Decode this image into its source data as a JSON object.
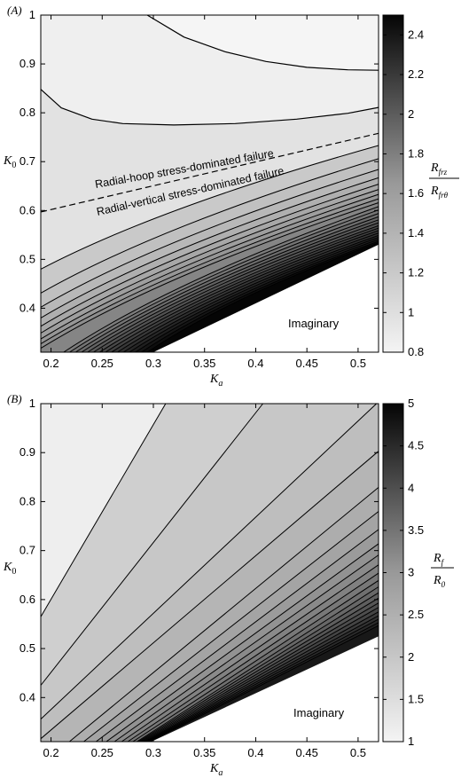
{
  "chart_data": [
    {
      "type": "contour",
      "panel_label": "(A)",
      "xlabel": "K_a",
      "ylabel": "K_0",
      "xlim": [
        0.19,
        0.52
      ],
      "ylim": [
        0.31,
        1.0
      ],
      "xticks": [
        "0.2",
        "0.25",
        "0.3",
        "0.35",
        "0.4",
        "0.45",
        "0.5"
      ],
      "xtick_values": [
        0.2,
        0.25,
        0.3,
        0.35,
        0.4,
        0.45,
        0.5
      ],
      "yticks": [
        "0.4",
        "0.5",
        "0.6",
        "0.7",
        "0.8",
        "0.9",
        "1"
      ],
      "ytick_values": [
        0.4,
        0.5,
        0.6,
        0.7,
        0.8,
        0.9,
        1.0
      ],
      "colorbar": {
        "label_num": "R_{frz}",
        "label_den": "R_{frθ}",
        "range": [
          0.8,
          2.5
        ],
        "ticks": [
          "0.8",
          "1",
          "1.2",
          "1.4",
          "1.6",
          "1.8",
          "2",
          "2.2",
          "2.4"
        ],
        "tick_values": [
          0.8,
          1.0,
          1.2,
          1.4,
          1.6,
          1.8,
          2.0,
          2.2,
          2.4
        ]
      },
      "imaginary_boundary": [
        [
          0.3,
          0.31
        ],
        [
          0.52,
          0.53
        ]
      ],
      "region_label": "Imaginary",
      "annotations": [
        "Radial-hoop stress-dominated failure",
        "Radial-vertical stress-dominated failure"
      ],
      "separator_line": [
        [
          0.19,
          0.597
        ],
        [
          0.52,
          0.758
        ]
      ],
      "upper_contours": [
        [
          [
            0.294,
            1.0
          ],
          [
            0.33,
            0.955
          ],
          [
            0.37,
            0.925
          ],
          [
            0.41,
            0.905
          ],
          [
            0.45,
            0.893
          ],
          [
            0.49,
            0.888
          ],
          [
            0.52,
            0.887
          ]
        ],
        [
          [
            0.19,
            0.848
          ],
          [
            0.21,
            0.81
          ],
          [
            0.24,
            0.787
          ],
          [
            0.27,
            0.778
          ],
          [
            0.32,
            0.775
          ],
          [
            0.38,
            0.778
          ],
          [
            0.44,
            0.787
          ],
          [
            0.49,
            0.799
          ],
          [
            0.52,
            0.811
          ]
        ]
      ],
      "fan_contours": {
        "y_left_start": [
          0.48,
          0.431,
          0.402,
          0.38,
          0.363,
          0.349,
          0.337,
          0.327,
          0.318
        ],
        "y_right_end": [
          0.733,
          0.706,
          0.684,
          0.667,
          0.654,
          0.643,
          0.633,
          0.624,
          0.616,
          0.608,
          0.601,
          0.594,
          0.587,
          0.581,
          0.575,
          0.569,
          0.564,
          0.559,
          0.554,
          0.549,
          0.545,
          0.541,
          0.537,
          0.534
        ],
        "levels_total": 24
      }
    },
    {
      "type": "contour",
      "panel_label": "(B)",
      "xlabel": "K_a",
      "ylabel": "K_0",
      "xlim": [
        0.19,
        0.52
      ],
      "ylim": [
        0.31,
        1.0
      ],
      "xticks": [
        "0.2",
        "0.25",
        "0.3",
        "0.35",
        "0.4",
        "0.45",
        "0.5"
      ],
      "xtick_values": [
        0.2,
        0.25,
        0.3,
        0.35,
        0.4,
        0.45,
        0.5
      ],
      "yticks": [
        "0.4",
        "0.5",
        "0.6",
        "0.7",
        "0.8",
        "0.9",
        "1"
      ],
      "ytick_values": [
        0.4,
        0.5,
        0.6,
        0.7,
        0.8,
        0.9,
        1.0
      ],
      "colorbar": {
        "label_num": "R_f",
        "label_den": "R_0",
        "range": [
          1.0,
          5.0
        ],
        "ticks": [
          "1",
          "1.5",
          "2",
          "2.5",
          "3",
          "3.5",
          "4",
          "4.5",
          "5"
        ],
        "tick_values": [
          1.0,
          1.5,
          2.0,
          2.5,
          3.0,
          3.5,
          4.0,
          4.5,
          5.0
        ]
      },
      "imaginary_boundary": [
        [
          0.298,
          0.31
        ],
        [
          0.52,
          0.525
        ]
      ],
      "region_label": "Imaginary",
      "fan_contours": {
        "lines": [
          [
            [
              0.19,
              0.565
            ],
            [
              0.312,
              1.0
            ]
          ],
          [
            [
              0.19,
              0.425
            ],
            [
              0.407,
              1.0
            ]
          ],
          [
            [
              0.19,
              0.356
            ],
            [
              0.518,
              1.0
            ]
          ],
          [
            [
              0.19,
              0.316
            ],
            [
              0.52,
              0.903
            ]
          ]
        ],
        "y_right_end_dense": [
          0.829,
          0.78,
          0.743,
          0.714,
          0.691,
          0.671,
          0.654,
          0.639,
          0.626,
          0.614,
          0.603,
          0.593,
          0.584,
          0.575,
          0.567,
          0.56,
          0.553,
          0.547
        ],
        "x_bottom_start_dense": [
          0.218,
          0.232,
          0.244,
          0.254,
          0.262,
          0.269,
          0.275,
          0.28,
          0.284
        ]
      }
    }
  ]
}
